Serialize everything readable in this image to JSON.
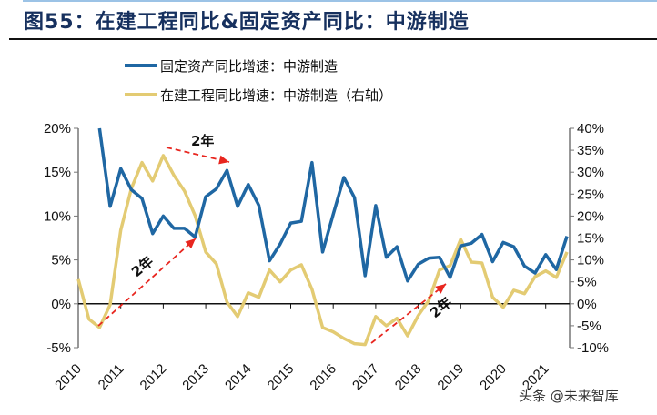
{
  "title": "图55：在建工程同比&固定资产同比：中游制造",
  "watermark": "头条 @未来智库",
  "chart_data": {
    "type": "line",
    "title": "图55：在建工程同比&固定资产同比：中游制造",
    "x_ticks": [
      "2010",
      "2011",
      "2012",
      "2013",
      "2014",
      "2015",
      "2016",
      "2017",
      "2018",
      "2019",
      "2020",
      "2021"
    ],
    "left_axis": {
      "ticks": [
        "-5%",
        "0%",
        "5%",
        "10%",
        "15%",
        "20%"
      ],
      "range": [
        -5,
        20
      ]
    },
    "right_axis": {
      "ticks": [
        "-10%",
        "-5%",
        "0%",
        "5%",
        "10%",
        "15%",
        "20%",
        "25%",
        "30%",
        "35%",
        "40%"
      ],
      "range": [
        -10,
        40
      ]
    },
    "grid": false,
    "legend_position": "top-center",
    "series": [
      {
        "name": "固定资产同比增速：中游制造",
        "axis": "left",
        "color": "#1f67a3",
        "start": "2010Q3",
        "frequency": "quarterly",
        "values": [
          20.0,
          11.1,
          15.4,
          13.0,
          12.0,
          8.0,
          10.0,
          8.6,
          8.6,
          7.6,
          12.2,
          13.1,
          15.2,
          11.1,
          13.6,
          11.2,
          4.9,
          6.8,
          9.2,
          9.4,
          16.1,
          5.9,
          10.2,
          14.4,
          12.1,
          3.2,
          11.2,
          5.3,
          6.5,
          2.6,
          4.5,
          5.2,
          5.3,
          3.0,
          6.6,
          6.9,
          7.9,
          4.8,
          7.0,
          6.5,
          4.3,
          3.5,
          5.6,
          3.9,
          7.7
        ]
      },
      {
        "name": "在建工程同比增速：中游制造（右轴）",
        "axis": "right",
        "color": "#e3cb73",
        "start": "2010Q1",
        "frequency": "quarterly",
        "values": [
          5.6,
          -3.5,
          -5.4,
          -0.2,
          16.8,
          26.3,
          32.2,
          28.0,
          33.8,
          29.3,
          25.7,
          20.1,
          11.8,
          9.1,
          0.4,
          -2.9,
          2.5,
          1.5,
          7.7,
          5.0,
          7.7,
          8.9,
          3.3,
          -5.4,
          -6.4,
          -7.9,
          -9.1,
          -9.3,
          -2.9,
          -5.0,
          -3.3,
          -7.3,
          -2.7,
          0.8,
          7.7,
          8.7,
          14.7,
          9.5,
          9.3,
          1.5,
          -0.8,
          3.1,
          2.3,
          6.2,
          7.5,
          6.0,
          11.8
        ]
      }
    ],
    "annotations": [
      {
        "text": "2年",
        "from": "2010Q3",
        "to": "2012Q4"
      },
      {
        "text": "2年",
        "from": "2012Q1",
        "to": "2013Q3"
      },
      {
        "text": "2年",
        "from": "2017Q1",
        "to": "2018Q4"
      }
    ]
  }
}
